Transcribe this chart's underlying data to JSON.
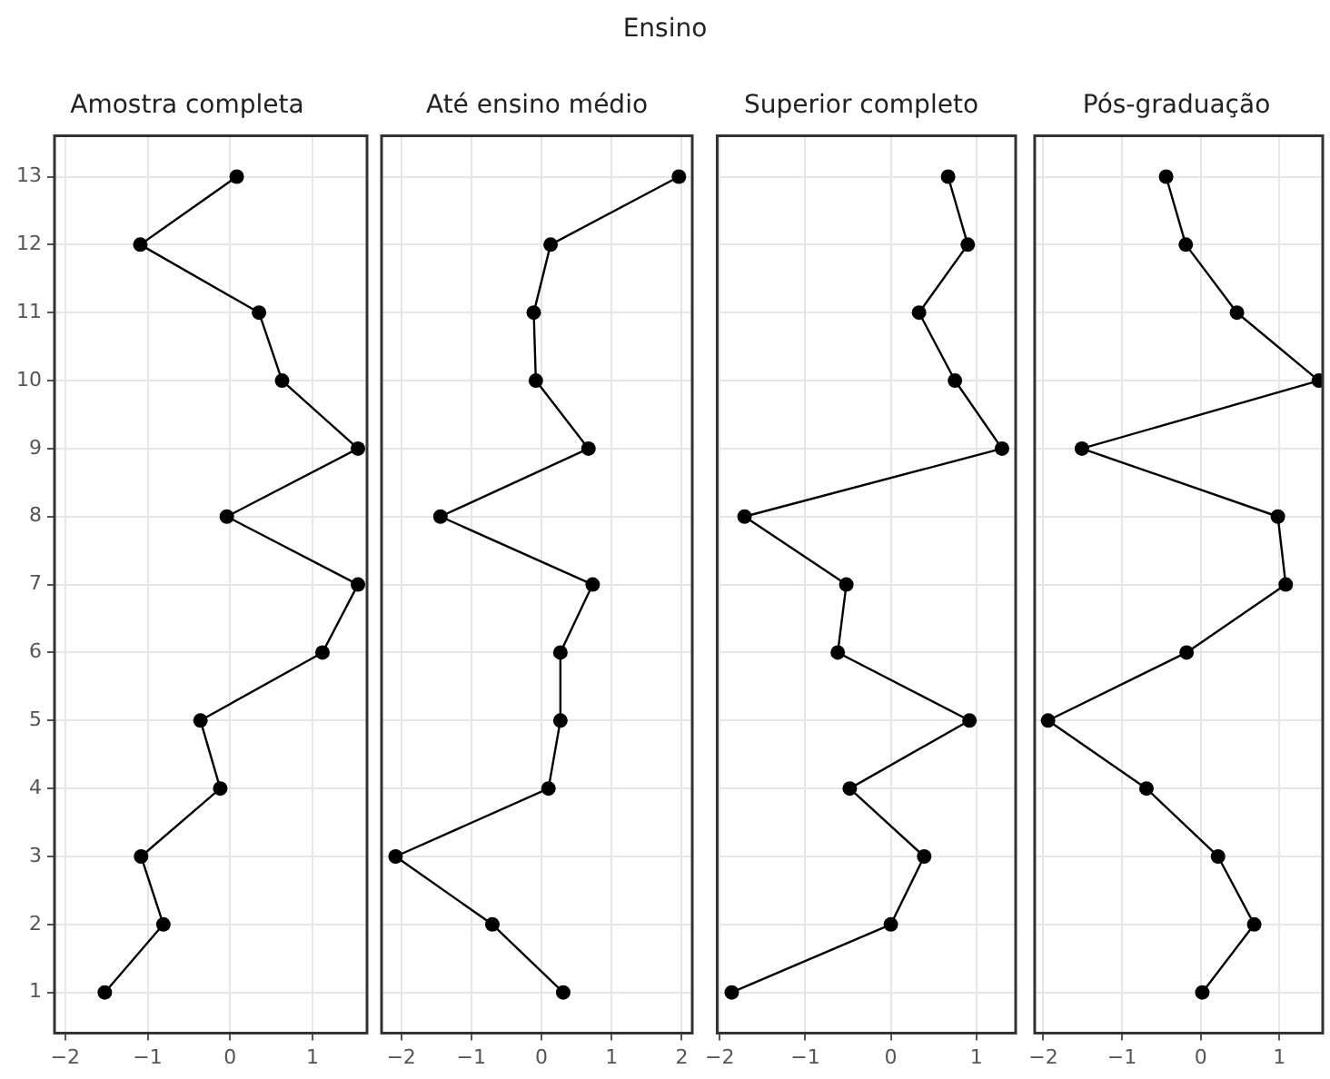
{
  "chart_data": [
    {
      "type": "line",
      "title": "Amostra completa",
      "annotations": [
        "Ensino"
      ],
      "marker": "circle",
      "grid": true,
      "xlim": [
        -2.13,
        1.66
      ],
      "xticks": [
        -2,
        -1,
        0,
        1
      ],
      "ylim": [
        0.4,
        13.6
      ],
      "yticks": [
        1,
        2,
        3,
        4,
        5,
        6,
        7,
        8,
        9,
        10,
        11,
        12,
        13
      ],
      "series": [
        {
          "color": "#000000",
          "x": [
            -1.52,
            -0.81,
            -1.08,
            -0.12,
            -0.36,
            1.12,
            1.55,
            -0.04,
            1.55,
            0.63,
            0.35,
            -1.09,
            0.08
          ],
          "values": [
            1,
            2,
            3,
            4,
            5,
            6,
            7,
            8,
            9,
            10,
            11,
            12,
            13
          ]
        }
      ]
    },
    {
      "type": "line",
      "title": "Até ensino médio",
      "marker": "circle",
      "grid": true,
      "tick_labels": "x",
      "xlim": [
        -2.28,
        2.15
      ],
      "xticks": [
        -2,
        -1,
        0,
        1,
        2
      ],
      "ylim": [
        0.4,
        13.6
      ],
      "yticks": [
        1,
        2,
        3,
        4,
        5,
        6,
        7,
        8,
        9,
        10,
        11,
        12,
        13
      ],
      "series": [
        {
          "color": "#000000",
          "x": [
            0.31,
            -0.7,
            -2.08,
            0.1,
            0.27,
            0.27,
            0.73,
            -1.44,
            0.67,
            -0.08,
            -0.11,
            0.13,
            1.96
          ],
          "values": [
            1,
            2,
            3,
            4,
            5,
            6,
            7,
            8,
            9,
            10,
            11,
            12,
            13
          ]
        }
      ]
    },
    {
      "type": "line",
      "title": "Superior completo",
      "marker": "circle",
      "grid": true,
      "tick_labels": "x",
      "xlim": [
        -2.03,
        1.46
      ],
      "xticks": [
        -2,
        -1,
        0,
        1
      ],
      "ylim": [
        0.4,
        13.6
      ],
      "yticks": [
        1,
        2,
        3,
        4,
        5,
        6,
        7,
        8,
        9,
        10,
        11,
        12,
        13
      ],
      "series": [
        {
          "color": "#000000",
          "x": [
            -1.86,
            0.0,
            0.39,
            -0.48,
            0.92,
            -0.62,
            -0.52,
            -1.71,
            1.3,
            0.75,
            0.33,
            0.9,
            0.67
          ],
          "values": [
            1,
            2,
            3,
            4,
            5,
            6,
            7,
            8,
            9,
            10,
            11,
            12,
            13
          ]
        }
      ]
    },
    {
      "type": "line",
      "title": "Pós-graduação",
      "marker": "circle",
      "grid": true,
      "tick_labels": "x",
      "xlim": [
        -2.11,
        1.55
      ],
      "xticks": [
        -2,
        -1,
        0,
        1
      ],
      "ylim": [
        0.4,
        13.6
      ],
      "yticks": [
        1,
        2,
        3,
        4,
        5,
        6,
        7,
        8,
        9,
        10,
        11,
        12,
        13
      ],
      "series": [
        {
          "color": "#000000",
          "x": [
            0.02,
            0.68,
            0.22,
            -0.69,
            -1.94,
            -0.18,
            1.08,
            0.98,
            -1.51,
            1.5,
            0.46,
            -0.19,
            -0.44
          ],
          "values": [
            1,
            2,
            3,
            4,
            5,
            6,
            7,
            8,
            9,
            10,
            11,
            12,
            13
          ]
        }
      ]
    }
  ]
}
